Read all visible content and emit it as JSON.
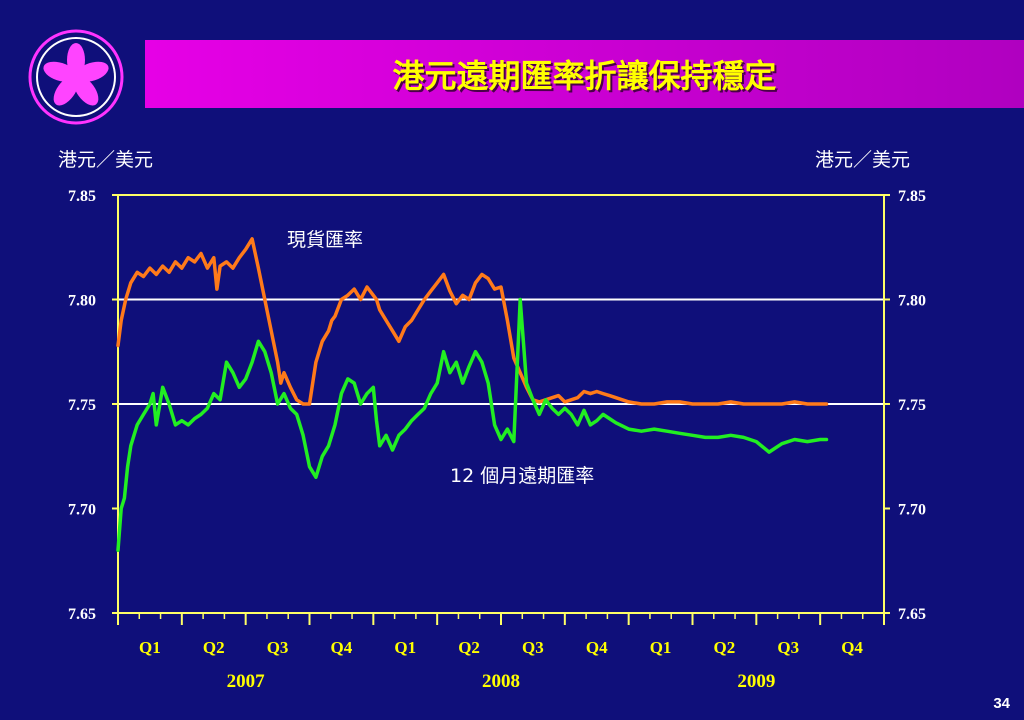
{
  "slide": {
    "title": "港元遠期匯率折讓保持穩定",
    "page_number": "34"
  },
  "colors": {
    "background": "#0f0f7a",
    "title_bar": "#d000d8",
    "title_text": "#ffff00",
    "axis": "#ffff66",
    "spot_series": "#ff7a1a",
    "forward_series": "#22ee22",
    "reference_lines": "#ffffff"
  },
  "chart_data": {
    "type": "line",
    "left_unit": "港元／美元",
    "right_unit": "港元／美元",
    "ylim": [
      7.65,
      7.85
    ],
    "yticks": [
      "7.85",
      "7.80",
      "7.75",
      "7.70",
      "7.65"
    ],
    "reference_lines": [
      7.8,
      7.75
    ],
    "x_range": [
      0,
      12
    ],
    "quarters": [
      "Q1",
      "Q2",
      "Q3",
      "Q4",
      "Q1",
      "Q2",
      "Q3",
      "Q4",
      "Q1",
      "Q2",
      "Q3",
      "Q4"
    ],
    "years": [
      "2007",
      "2008",
      "2009"
    ],
    "annotations": {
      "spot": "現貨匯率",
      "forward": "12 個月遠期匯率"
    },
    "series": [
      {
        "name": "現貨匯率",
        "x": [
          0.0,
          0.05,
          0.12,
          0.2,
          0.3,
          0.4,
          0.5,
          0.6,
          0.7,
          0.8,
          0.9,
          1.0,
          1.1,
          1.2,
          1.3,
          1.4,
          1.5,
          1.55,
          1.6,
          1.7,
          1.8,
          1.9,
          2.0,
          2.1,
          2.2,
          2.3,
          2.4,
          2.5,
          2.55,
          2.6,
          2.7,
          2.8,
          2.9,
          3.0,
          3.1,
          3.2,
          3.3,
          3.35,
          3.4,
          3.5,
          3.6,
          3.7,
          3.8,
          3.9,
          4.0,
          4.05,
          4.1,
          4.2,
          4.3,
          4.4,
          4.5,
          4.6,
          4.7,
          4.8,
          4.9,
          5.0,
          5.1,
          5.2,
          5.3,
          5.4,
          5.5,
          5.6,
          5.7,
          5.8,
          5.9,
          6.0,
          6.1,
          6.2,
          6.3,
          6.4,
          6.5,
          6.6,
          6.7,
          6.8,
          6.9,
          7.0,
          7.1,
          7.2,
          7.3,
          7.4,
          7.5,
          7.6,
          7.7,
          7.8,
          8.0,
          8.2,
          8.4,
          8.6,
          8.8,
          9.0,
          9.2,
          9.4,
          9.6,
          9.8,
          10.0,
          10.2,
          10.4,
          10.6,
          10.8,
          11.0,
          11.1
        ],
        "values": [
          7.778,
          7.79,
          7.8,
          7.808,
          7.813,
          7.811,
          7.815,
          7.812,
          7.816,
          7.813,
          7.818,
          7.815,
          7.82,
          7.818,
          7.822,
          7.815,
          7.82,
          7.805,
          7.816,
          7.818,
          7.815,
          7.82,
          7.824,
          7.829,
          7.815,
          7.8,
          7.785,
          7.77,
          7.76,
          7.765,
          7.758,
          7.752,
          7.75,
          7.75,
          7.77,
          7.78,
          7.785,
          7.79,
          7.792,
          7.8,
          7.802,
          7.805,
          7.8,
          7.806,
          7.802,
          7.8,
          7.795,
          7.79,
          7.785,
          7.78,
          7.787,
          7.79,
          7.795,
          7.8,
          7.804,
          7.808,
          7.812,
          7.804,
          7.798,
          7.802,
          7.8,
          7.808,
          7.812,
          7.81,
          7.805,
          7.806,
          7.79,
          7.772,
          7.765,
          7.758,
          7.752,
          7.751,
          7.752,
          7.753,
          7.754,
          7.751,
          7.752,
          7.753,
          7.756,
          7.755,
          7.756,
          7.755,
          7.754,
          7.753,
          7.751,
          7.75,
          7.75,
          7.751,
          7.751,
          7.75,
          7.75,
          7.75,
          7.751,
          7.75,
          7.75,
          7.75,
          7.75,
          7.751,
          7.75,
          7.75,
          7.75
        ]
      },
      {
        "name": "12 個月遠期匯率",
        "x": [
          0.0,
          0.05,
          0.1,
          0.15,
          0.2,
          0.25,
          0.3,
          0.4,
          0.5,
          0.55,
          0.6,
          0.7,
          0.8,
          0.9,
          1.0,
          1.1,
          1.2,
          1.3,
          1.4,
          1.5,
          1.6,
          1.7,
          1.8,
          1.9,
          2.0,
          2.1,
          2.2,
          2.3,
          2.4,
          2.5,
          2.6,
          2.7,
          2.8,
          2.9,
          3.0,
          3.1,
          3.2,
          3.3,
          3.4,
          3.5,
          3.6,
          3.7,
          3.8,
          3.9,
          4.0,
          4.05,
          4.1,
          4.2,
          4.3,
          4.4,
          4.5,
          4.6,
          4.7,
          4.8,
          4.9,
          5.0,
          5.1,
          5.2,
          5.3,
          5.4,
          5.5,
          5.6,
          5.7,
          5.8,
          5.9,
          6.0,
          6.1,
          6.2,
          6.3,
          6.4,
          6.5,
          6.6,
          6.7,
          6.8,
          6.9,
          7.0,
          7.1,
          7.2,
          7.3,
          7.4,
          7.5,
          7.6,
          7.7,
          7.8,
          8.0,
          8.2,
          8.4,
          8.6,
          8.8,
          9.0,
          9.2,
          9.4,
          9.6,
          9.8,
          10.0,
          10.2,
          10.4,
          10.6,
          10.8,
          11.0,
          11.1
        ],
        "values": [
          7.68,
          7.7,
          7.705,
          7.72,
          7.73,
          7.735,
          7.74,
          7.745,
          7.75,
          7.755,
          7.74,
          7.758,
          7.75,
          7.74,
          7.742,
          7.74,
          7.743,
          7.745,
          7.748,
          7.755,
          7.752,
          7.77,
          7.765,
          7.758,
          7.762,
          7.77,
          7.78,
          7.775,
          7.765,
          7.75,
          7.755,
          7.748,
          7.745,
          7.735,
          7.72,
          7.715,
          7.725,
          7.73,
          7.74,
          7.755,
          7.762,
          7.76,
          7.75,
          7.755,
          7.758,
          7.742,
          7.73,
          7.735,
          7.728,
          7.735,
          7.738,
          7.742,
          7.745,
          7.748,
          7.755,
          7.76,
          7.775,
          7.765,
          7.77,
          7.76,
          7.768,
          7.775,
          7.77,
          7.76,
          7.74,
          7.733,
          7.738,
          7.732,
          7.8,
          7.76,
          7.752,
          7.745,
          7.752,
          7.748,
          7.745,
          7.748,
          7.745,
          7.74,
          7.747,
          7.74,
          7.742,
          7.745,
          7.743,
          7.741,
          7.738,
          7.737,
          7.738,
          7.737,
          7.736,
          7.735,
          7.734,
          7.734,
          7.735,
          7.734,
          7.732,
          7.727,
          7.731,
          7.733,
          7.732,
          7.733,
          7.733
        ]
      }
    ]
  }
}
